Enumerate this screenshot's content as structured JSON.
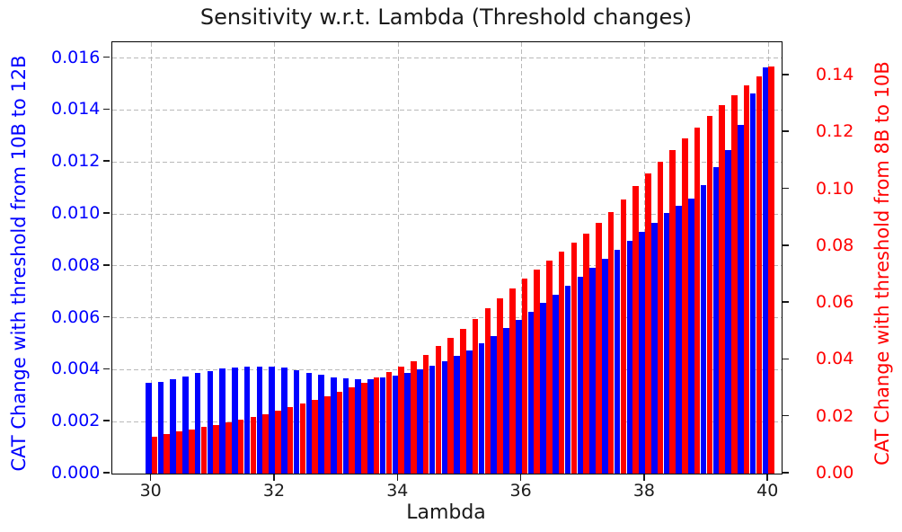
{
  "title": "Sensitivity w.r.t. Lambda (Threshold changes)",
  "xlabel": "Lambda",
  "colors": {
    "blue_series": "#0000FF",
    "red_series": "#FF0000",
    "grid": "#B9B9B9",
    "spine": "#000000",
    "background": "#FFFFFF"
  },
  "chart_data": {
    "type": "bar",
    "title": "Sensitivity w.r.t. Lambda (Threshold changes)",
    "xlabel": "Lambda",
    "grid": true,
    "legend": "none",
    "x": [
      30.0,
      30.2,
      30.4,
      30.6,
      30.8,
      31.0,
      31.2,
      31.4,
      31.6,
      31.8,
      32.0,
      32.2,
      32.4,
      32.6,
      32.8,
      33.0,
      33.2,
      33.4,
      33.6,
      33.8,
      34.0,
      34.2,
      34.4,
      34.6,
      34.8,
      35.0,
      35.2,
      35.4,
      35.6,
      35.8,
      36.0,
      36.2,
      36.4,
      36.6,
      36.8,
      37.0,
      37.2,
      37.4,
      37.6,
      37.8,
      38.0,
      38.2,
      38.4,
      38.6,
      38.8,
      39.0,
      39.2,
      39.4,
      39.6,
      39.8,
      40.0
    ],
    "series": [
      {
        "name": "CAT Change with threshold from 10B to 12B",
        "axis": "left",
        "color": "#0000FF",
        "values": [
          0.0035,
          0.00353,
          0.00363,
          0.00374,
          0.00386,
          0.00396,
          0.00404,
          0.00409,
          0.00411,
          0.00412,
          0.00411,
          0.00407,
          0.00399,
          0.00389,
          0.00379,
          0.00371,
          0.00366,
          0.00363,
          0.00365,
          0.0037,
          0.00378,
          0.00388,
          0.004,
          0.00415,
          0.00432,
          0.00452,
          0.00475,
          0.00501,
          0.00529,
          0.00559,
          0.00591,
          0.00624,
          0.00657,
          0.0069,
          0.00724,
          0.00758,
          0.00792,
          0.00826,
          0.0086,
          0.00895,
          0.00931,
          0.00967,
          0.01003,
          0.0103,
          0.01058,
          0.0111,
          0.0118,
          0.01245,
          0.01343,
          0.01462,
          0.01565
        ]
      },
      {
        "name": "CAT Change with threshold from 8B to 10B",
        "axis": "right",
        "color": "#FF0000",
        "values": [
          0.0128,
          0.0138,
          0.0147,
          0.0155,
          0.0164,
          0.0172,
          0.0181,
          0.019,
          0.02,
          0.021,
          0.0221,
          0.0233,
          0.0245,
          0.0258,
          0.0272,
          0.0287,
          0.0303,
          0.032,
          0.0338,
          0.0356,
          0.0375,
          0.0395,
          0.0418,
          0.0448,
          0.0478,
          0.051,
          0.0545,
          0.058,
          0.0616,
          0.065,
          0.0686,
          0.0718,
          0.075,
          0.0781,
          0.0812,
          0.0845,
          0.088,
          0.092,
          0.0965,
          0.101,
          0.1055,
          0.1097,
          0.1137,
          0.1177,
          0.1216,
          0.1256,
          0.1294,
          0.1329,
          0.1364,
          0.1398,
          0.1432
        ]
      }
    ],
    "x_axis": {
      "range": [
        29.364,
        40.215
      ],
      "tick_values": [
        30,
        32,
        34,
        36,
        38,
        40
      ],
      "tick_labels": [
        "30",
        "32",
        "34",
        "36",
        "38",
        "40"
      ]
    },
    "left_axis": {
      "label": "CAT Change with threshold from 10B to 12B",
      "color": "#0000FF",
      "range": [
        0,
        0.016609
      ],
      "tick_values": [
        0.0,
        0.002,
        0.004,
        0.006,
        0.008,
        0.01,
        0.012,
        0.014,
        0.016
      ],
      "tick_labels": [
        "0.000",
        "0.002",
        "0.004",
        "0.006",
        "0.008",
        "0.010",
        "0.012",
        "0.014",
        "0.016"
      ]
    },
    "right_axis": {
      "label": "CAT Change with threshold from 8B to 10B",
      "color": "#FF0000",
      "range": [
        0,
        0.15166
      ],
      "tick_values": [
        0.0,
        0.02,
        0.04,
        0.06,
        0.08,
        0.1,
        0.12,
        0.14
      ],
      "tick_labels": [
        "0.00",
        "0.02",
        "0.04",
        "0.06",
        "0.08",
        "0.10",
        "0.12",
        "0.14"
      ]
    }
  }
}
